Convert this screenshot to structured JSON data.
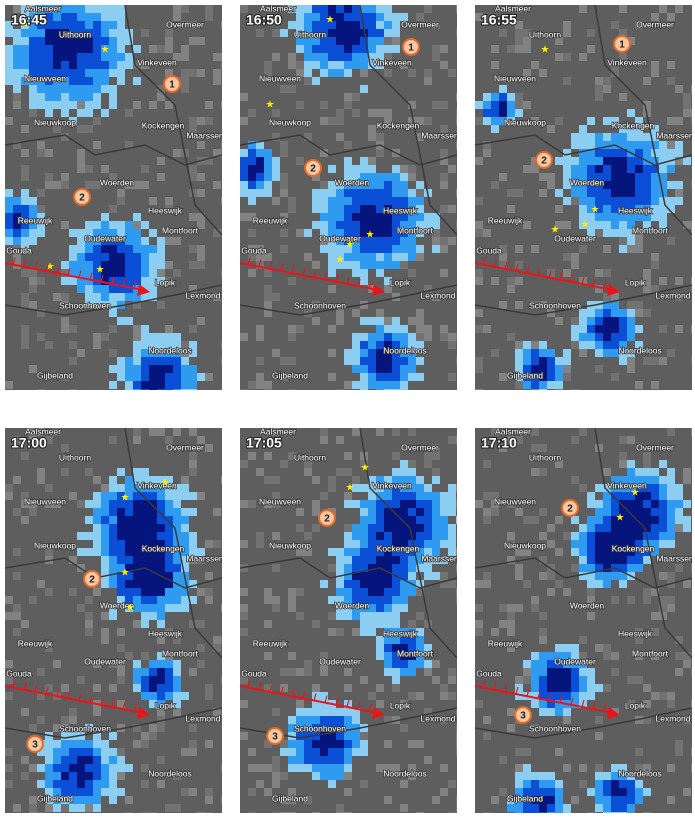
{
  "panels": [
    {
      "time": "16:45",
      "markers": [
        "1",
        "2"
      ]
    },
    {
      "time": "16:50",
      "markers": [
        "1",
        "2"
      ]
    },
    {
      "time": "16:55",
      "markers": [
        "1",
        "2"
      ]
    },
    {
      "time": "17:00",
      "markers": [
        "2",
        "3"
      ]
    },
    {
      "time": "17:05",
      "markers": [
        "2",
        "3"
      ]
    },
    {
      "time": "17:10",
      "markers": [
        "2",
        "3"
      ]
    }
  ],
  "places": [
    "Aalsmeer",
    "Uithoorn",
    "Overmeer",
    "Vinkeveen",
    "Nieuwveen",
    "Nieuwkoop",
    "Kockengen",
    "Maarssen",
    "Woerden",
    "Reeuwijk",
    "Heeswijk",
    "Montfoort",
    "Oudewater",
    "Gouda",
    "Lopik",
    "Lexmond",
    "Schoonhoven",
    "Noordeloos",
    "Gijbeland"
  ]
}
